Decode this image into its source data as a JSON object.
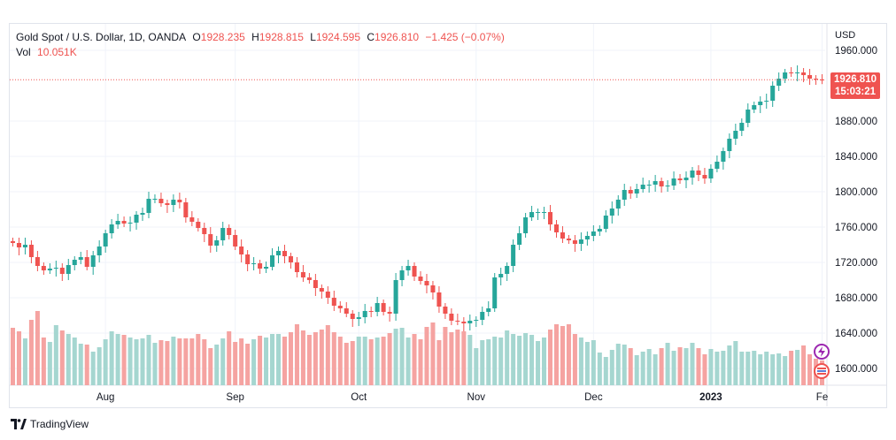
{
  "legend": {
    "symbol": "Gold Spot / U.S. Dollar, 1D, OANDA",
    "open_label": "O",
    "open": "1928.235",
    "high_label": "H",
    "high": "1928.815",
    "low_label": "L",
    "low": "1924.595",
    "close_label": "C",
    "close": "1926.810",
    "change": "−1.425 (−0.07%)",
    "vol_label": "Vol",
    "vol_value": "10.051K"
  },
  "price_tag": {
    "price": "1926.810",
    "countdown": "15:03:21"
  },
  "axis": {
    "currency": "USD"
  },
  "branding": {
    "name": "TradingView"
  },
  "colors": {
    "up": "#26a69a",
    "down": "#ef5350",
    "vol_up": "#a5d6d0",
    "vol_down": "#f5a3a1",
    "grid": "#f0f3fa"
  },
  "chart_data": {
    "type": "candlestick",
    "title": "Gold Spot / U.S. Dollar, 1D, OANDA",
    "ylim": [
      1580,
      1980
    ],
    "y_ticks": [
      1600,
      1640,
      1680,
      1720,
      1760,
      1800,
      1840,
      1880,
      1960
    ],
    "x_tick_labels": [
      "Aug",
      "Sep",
      "Oct",
      "Nov",
      "Dec",
      "2023",
      "Fe"
    ],
    "x_tick_indices": [
      15,
      36,
      56,
      75,
      94,
      113,
      131
    ],
    "last_price": 1926.81,
    "closes": [
      1742,
      1737,
      1740,
      1726,
      1716,
      1711,
      1713,
      1714,
      1707,
      1717,
      1723,
      1726,
      1715,
      1728,
      1738,
      1753,
      1763,
      1767,
      1764,
      1765,
      1774,
      1776,
      1792,
      1792,
      1787,
      1785,
      1791,
      1788,
      1771,
      1766,
      1759,
      1752,
      1739,
      1745,
      1759,
      1751,
      1738,
      1729,
      1718,
      1719,
      1713,
      1715,
      1728,
      1733,
      1727,
      1720,
      1709,
      1703,
      1700,
      1691,
      1687,
      1680,
      1671,
      1668,
      1662,
      1656,
      1658,
      1665,
      1664,
      1674,
      1664,
      1662,
      1700,
      1711,
      1716,
      1704,
      1699,
      1694,
      1686,
      1670,
      1662,
      1654,
      1653,
      1651,
      1654,
      1655,
      1664,
      1668,
      1703,
      1707,
      1716,
      1740,
      1753,
      1771,
      1777,
      1777,
      1777,
      1763,
      1754,
      1747,
      1745,
      1741,
      1746,
      1750,
      1755,
      1758,
      1773,
      1781,
      1791,
      1802,
      1798,
      1803,
      1808,
      1808,
      1812,
      1806,
      1807,
      1815,
      1813,
      1816,
      1824,
      1819,
      1815,
      1826,
      1834,
      1846,
      1860,
      1869,
      1878,
      1893,
      1898,
      1902,
      1903,
      1920,
      1928,
      1935,
      1934,
      1935,
      1932,
      1928,
      1927,
      1926.81
    ],
    "volumes": [
      65,
      61,
      53,
      74,
      84,
      54,
      49,
      68,
      62,
      58,
      54,
      47,
      46,
      38,
      43,
      52,
      61,
      58,
      57,
      54,
      52,
      53,
      57,
      48,
      51,
      50,
      55,
      53,
      53,
      53,
      58,
      52,
      42,
      46,
      53,
      61,
      49,
      53,
      47,
      52,
      56,
      54,
      58,
      58,
      55,
      60,
      69,
      62,
      57,
      60,
      63,
      68,
      60,
      55,
      48,
      50,
      55,
      55,
      52,
      54,
      55,
      59,
      64,
      65,
      54,
      58,
      52,
      66,
      71,
      51,
      66,
      60,
      63,
      61,
      57,
      42,
      51,
      52,
      55,
      54,
      62,
      58,
      56,
      59,
      57,
      50,
      54,
      63,
      69,
      67,
      69,
      58,
      54,
      49,
      51,
      37,
      32,
      40,
      47,
      46,
      42,
      34,
      38,
      41,
      35,
      42,
      48,
      39,
      43,
      42,
      48,
      42,
      35,
      41,
      38,
      39,
      45,
      50,
      38,
      38,
      39,
      35,
      38,
      35,
      36,
      33,
      39,
      40,
      45,
      35,
      30,
      28
    ]
  }
}
